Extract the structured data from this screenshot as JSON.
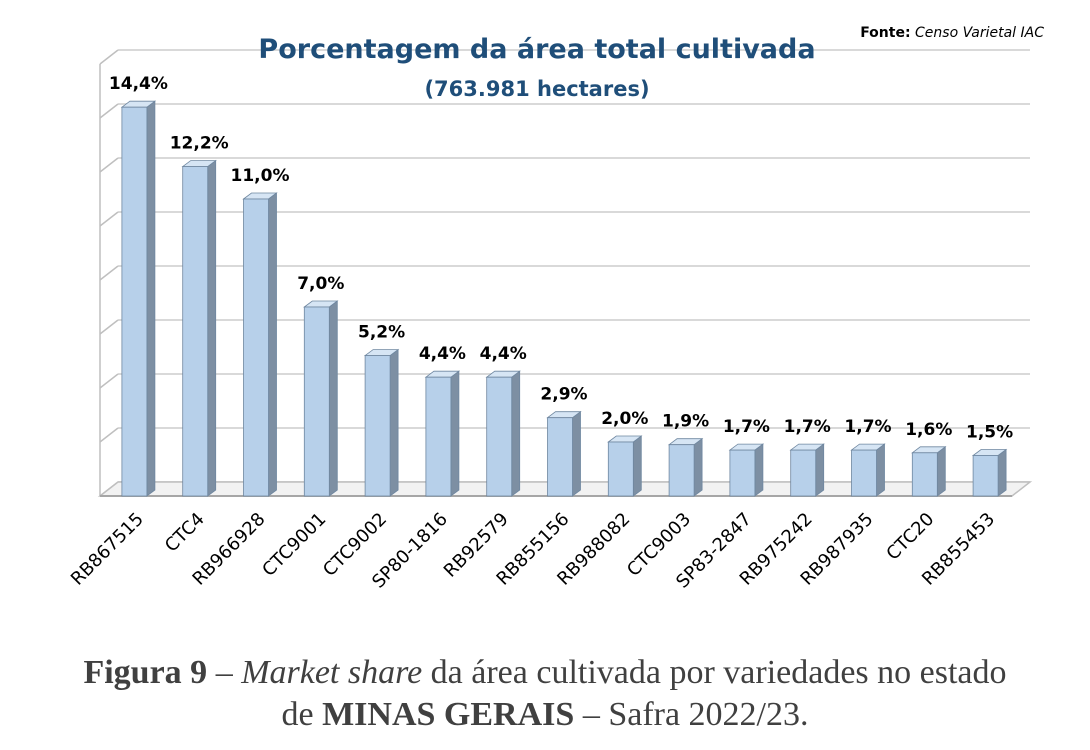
{
  "source": {
    "label": "Fonte:",
    "text": "Censo Varietal IAC"
  },
  "caption": {
    "fig_label": "Figura 9",
    "dash1": " – ",
    "italic": "Market share",
    "rest1": " da área cultivada por variedades no estado",
    "prefix2": "de ",
    "state": "MINAS GERAIS",
    "rest2": " – Safra 2022/23."
  },
  "chart_data": {
    "type": "bar",
    "title": "Porcentagem da área total cultivada",
    "subtitle": "(763.981 hectares)",
    "xlabel": "",
    "ylabel": "",
    "ylim": [
      0,
      16
    ],
    "grid": true,
    "legend": "none",
    "categories": [
      "RB867515",
      "CTC4",
      "RB966928",
      "CTC9001",
      "CTC9002",
      "SP80-1816",
      "RB92579",
      "RB855156",
      "RB988082",
      "CTC9003",
      "SP83-2847",
      "RB975242",
      "RB987935",
      "CTC20",
      "RB855453"
    ],
    "values": [
      14.4,
      12.2,
      11.0,
      7.0,
      5.2,
      4.4,
      4.4,
      2.9,
      2.0,
      1.9,
      1.7,
      1.7,
      1.7,
      1.6,
      1.5
    ],
    "data_labels": [
      "14,4%",
      "12,2%",
      "11,0%",
      "7,0%",
      "5,2%",
      "4,4%",
      "4,4%",
      "2,9%",
      "2,0%",
      "1,9%",
      "1,7%",
      "1,7%",
      "1,7%",
      "1,6%",
      "1,5%"
    ],
    "colors": {
      "bar_front": "#b7d0ea",
      "bar_side": "#7d8fa3",
      "bar_top": "#d6e5f4",
      "bar_edge": "#6f87a0",
      "title": "#1f4e79",
      "grid": "#d9d9d9"
    }
  }
}
